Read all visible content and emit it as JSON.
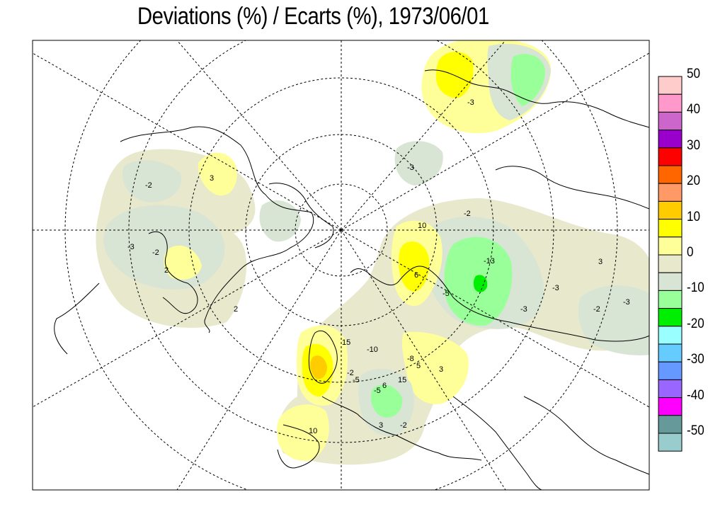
{
  "title": "Deviations (%) / Ecarts (%), 1973/06/01",
  "legend": {
    "levels": [
      {
        "label": "50",
        "color": "#ffcccc"
      },
      {
        "label": "",
        "color": "#ff99cc"
      },
      {
        "label": "40",
        "color": "#cc66cc"
      },
      {
        "label": "",
        "color": "#9900cc"
      },
      {
        "label": "30",
        "color": "#ff0000"
      },
      {
        "label": "",
        "color": "#ff6600"
      },
      {
        "label": "20",
        "color": "#ff9966"
      },
      {
        "label": "",
        "color": "#ffcc00"
      },
      {
        "label": "10",
        "color": "#ffff00"
      },
      {
        "label": "",
        "color": "#ffff99"
      },
      {
        "label": "0",
        "color": "#e8e8cc"
      },
      {
        "label": "",
        "color": "#d8e4d4"
      },
      {
        "label": "-10",
        "color": "#99ff99"
      },
      {
        "label": "",
        "color": "#00ee00"
      },
      {
        "label": "-20",
        "color": "#99ffff"
      },
      {
        "label": "",
        "color": "#66ccff"
      },
      {
        "label": "-30",
        "color": "#6699ff"
      },
      {
        "label": "",
        "color": "#9966ff"
      },
      {
        "label": "-40",
        "color": "#ff00ff"
      },
      {
        "label": "",
        "color": "#669999"
      },
      {
        "label": "-50",
        "color": "#99cccc"
      }
    ]
  },
  "contour_labels": [
    "-2",
    "-3",
    "-2",
    "2",
    "3",
    "2",
    "-3",
    "10",
    "6",
    "-5",
    "-13",
    "-2",
    "-3",
    "3",
    "-3",
    "-3",
    "-2",
    "15",
    "-10",
    "5",
    "-5",
    "6",
    "15",
    "-8",
    "-2",
    "3",
    "10",
    "3",
    "-2",
    "-5",
    "-3"
  ]
}
